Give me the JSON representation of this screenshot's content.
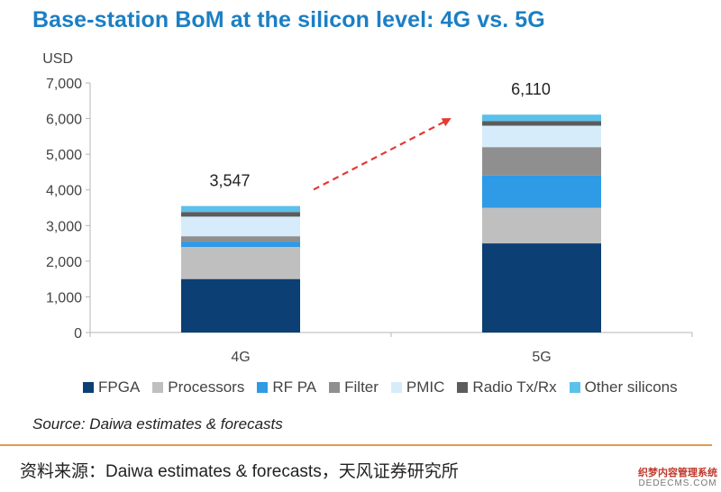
{
  "caption": "资料来源：Daiwa estimates & forecasts，天风证券研究所",
  "watermark": {
    "line1": "织梦内容管理系统",
    "line2": "DEDECMS.COM"
  },
  "chart_data": {
    "type": "bar",
    "stacked": true,
    "title": "Base-station BoM at the silicon level: 4G vs. 5G",
    "ylabel": "USD",
    "xlabel": "",
    "ylim": [
      0,
      7000
    ],
    "yticks": [
      0,
      1000,
      2000,
      3000,
      4000,
      5000,
      6000,
      7000
    ],
    "ytick_labels": [
      "0",
      "1,000",
      "2,000",
      "3,000",
      "4,000",
      "5,000",
      "6,000",
      "7,000"
    ],
    "categories": [
      "4G",
      "5G"
    ],
    "totals": [
      3547,
      6110
    ],
    "total_labels": [
      "3,547",
      "6,110"
    ],
    "series": [
      {
        "name": "FPGA",
        "color": "#0c3f73",
        "values": [
          1500,
          2500
        ]
      },
      {
        "name": "Processors",
        "color": "#bfbfbf",
        "values": [
          900,
          1000
        ]
      },
      {
        "name": "RF PA",
        "color": "#2f9ae6",
        "values": [
          150,
          900
        ]
      },
      {
        "name": "Filter",
        "color": "#8f8f8f",
        "values": [
          150,
          800
        ]
      },
      {
        "name": "PMIC",
        "color": "#d6ecfa",
        "values": [
          550,
          600
        ]
      },
      {
        "name": "Radio Tx/Rx",
        "color": "#5c5c5c",
        "values": [
          130,
          130
        ]
      },
      {
        "name": "Other silicons",
        "color": "#5cc1ea",
        "values": [
          167,
          180
        ]
      }
    ],
    "annotation": "red dashed arrow from 4G to 5G indicating increase",
    "arrow_color": "#e53935",
    "legend_position": "bottom",
    "source": "Source: Daiwa  estimates & forecasts"
  }
}
